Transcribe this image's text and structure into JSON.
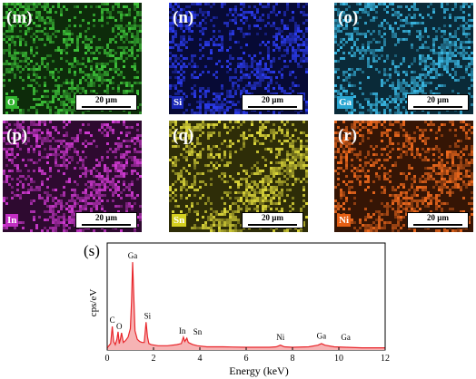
{
  "panels": [
    {
      "label": "(m)",
      "element": "O",
      "scale": "20 µm",
      "color": "#3ec53a",
      "dark": "#0d2b0a",
      "label_bg": "#31b52e",
      "label_fg": "#ffffff"
    },
    {
      "label": "(n)",
      "element": "Si",
      "scale": "20 µm",
      "color": "#2c3cf0",
      "dark": "#070a35",
      "label_bg": "#1a28b8",
      "label_fg": "#ffffff"
    },
    {
      "label": "(o)",
      "element": "Ga",
      "scale": "20 µm",
      "color": "#3ab8e3",
      "dark": "#0a2a38",
      "label_bg": "#2aa6d2",
      "label_fg": "#ffffff"
    },
    {
      "label": "(p)",
      "element": "In",
      "scale": "20 µm",
      "color": "#d13ad3",
      "dark": "#2e0a30",
      "label_bg": "#c22ec3",
      "label_fg": "#ffffff"
    },
    {
      "label": "(q)",
      "element": "Sn",
      "scale": "20 µm",
      "color": "#dcd73a",
      "dark": "#2e2d08",
      "label_bg": "#d4cf20",
      "label_fg": "#ffffff"
    },
    {
      "label": "(r)",
      "element": "Ni",
      "scale": "20 µm",
      "color": "#f06a1e",
      "dark": "#351505",
      "label_bg": "#e45e14",
      "label_fg": "#ffffff"
    }
  ],
  "chart_data": {
    "type": "line",
    "panel_label": "(s)",
    "title": "",
    "xlabel": "Energy (keV)",
    "ylabel": "cps/eV",
    "xlim": [
      0,
      12
    ],
    "xticks": [
      0,
      2,
      4,
      6,
      8,
      10,
      12
    ],
    "ylim": [
      0,
      1
    ],
    "line_color": "#e8262b",
    "fill_color": "#f6b3b4",
    "series": [
      {
        "x": [
          0.0,
          0.15,
          0.22,
          0.28,
          0.35,
          0.42,
          0.47,
          0.52,
          0.57,
          0.62,
          0.7,
          0.8,
          0.9,
          1.0,
          1.05,
          1.1,
          1.15,
          1.2,
          1.3,
          1.4,
          1.5,
          1.6,
          1.68,
          1.74,
          1.8,
          1.9,
          2.2,
          2.6,
          3.0,
          3.2,
          3.29,
          3.35,
          3.44,
          3.5,
          3.6,
          3.7,
          3.9,
          4.3,
          5.0,
          6.0,
          7.0,
          7.3,
          7.48,
          7.65,
          8.0,
          8.7,
          9.1,
          9.25,
          9.4,
          9.8,
          10.3,
          11.0,
          12.0
        ],
        "y": [
          0.02,
          0.06,
          0.22,
          0.08,
          0.05,
          0.1,
          0.17,
          0.06,
          0.1,
          0.16,
          0.07,
          0.09,
          0.12,
          0.2,
          0.45,
          0.82,
          0.5,
          0.18,
          0.1,
          0.08,
          0.07,
          0.07,
          0.26,
          0.12,
          0.06,
          0.05,
          0.04,
          0.04,
          0.05,
          0.06,
          0.12,
          0.08,
          0.11,
          0.07,
          0.06,
          0.05,
          0.04,
          0.03,
          0.03,
          0.025,
          0.025,
          0.03,
          0.045,
          0.03,
          0.025,
          0.03,
          0.045,
          0.06,
          0.045,
          0.03,
          0.025,
          0.02,
          0.02
        ]
      }
    ],
    "peak_labels": [
      {
        "text": "Ga",
        "x": 1.1,
        "y": 0.82
      },
      {
        "text": "C",
        "x": 0.22,
        "y": 0.22
      },
      {
        "text": "O",
        "x": 0.52,
        "y": 0.16
      },
      {
        "text": "Si",
        "x": 1.74,
        "y": 0.26
      },
      {
        "text": "In",
        "x": 3.24,
        "y": 0.12
      },
      {
        "text": "Sn",
        "x": 3.9,
        "y": 0.11
      },
      {
        "text": "Ni",
        "x": 7.48,
        "y": 0.06
      },
      {
        "text": "Ga",
        "x": 9.25,
        "y": 0.07
      },
      {
        "text": "Ga",
        "x": 10.3,
        "y": 0.06
      }
    ]
  }
}
